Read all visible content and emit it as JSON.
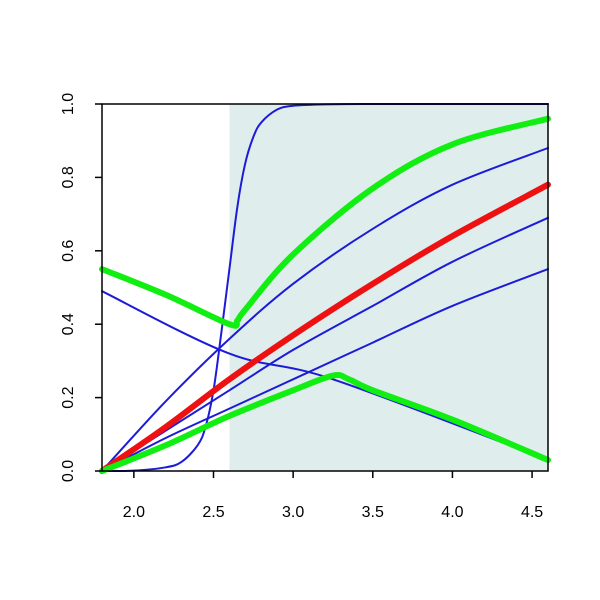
{
  "chart_data": {
    "type": "line",
    "title": "",
    "xlabel": "",
    "ylabel": "",
    "xlim": [
      1.8,
      4.6
    ],
    "ylim": [
      0.0,
      1.0
    ],
    "x_ticks": [
      "2.0",
      "2.5",
      "3.0",
      "3.5",
      "4.0",
      "4.5"
    ],
    "y_ticks": [
      "0.0",
      "0.2",
      "0.4",
      "0.6",
      "0.8",
      "1.0"
    ],
    "shaded_region": {
      "x_from": 2.6,
      "x_to": 4.6,
      "color": "#e0eded"
    },
    "grid": false,
    "legend": "none",
    "series": [
      {
        "color": "#1c1cd8",
        "width": "thin",
        "x": [
          1.8,
          2.0,
          2.2,
          2.3,
          2.4,
          2.45,
          2.5,
          2.55,
          2.6,
          2.65,
          2.7,
          2.75,
          2.8,
          2.9,
          3.0,
          3.2,
          3.5,
          4.0,
          4.6
        ],
        "y": [
          0.0,
          0.001,
          0.01,
          0.025,
          0.07,
          0.12,
          0.22,
          0.38,
          0.55,
          0.72,
          0.84,
          0.91,
          0.95,
          0.985,
          0.995,
          0.999,
          1.0,
          1.0,
          1.0
        ]
      },
      {
        "color": "#1c1cd8",
        "width": "thin",
        "x": [
          1.8,
          2.2,
          2.6,
          3.0,
          3.5,
          4.0,
          4.6
        ],
        "y": [
          0.0,
          0.19,
          0.36,
          0.51,
          0.66,
          0.78,
          0.88
        ]
      },
      {
        "color": "#1c1cd8",
        "width": "thin",
        "x": [
          1.8,
          2.2,
          2.6,
          3.0,
          3.5,
          4.0,
          4.6
        ],
        "y": [
          0.0,
          0.11,
          0.22,
          0.33,
          0.45,
          0.57,
          0.69
        ]
      },
      {
        "color": "#1c1cd8",
        "width": "thin",
        "x": [
          1.8,
          2.2,
          2.6,
          3.0,
          3.5,
          4.0,
          4.6
        ],
        "y": [
          0.0,
          0.09,
          0.17,
          0.25,
          0.35,
          0.45,
          0.55
        ]
      },
      {
        "color": "#1c1cd8",
        "width": "thin",
        "x": [
          1.8,
          2.6,
          3.25,
          4.6
        ],
        "y": [
          0.49,
          0.32,
          0.25,
          0.03
        ]
      },
      {
        "color": "#ee1111",
        "width": "thick",
        "x": [
          1.8,
          2.2,
          2.6,
          3.0,
          3.5,
          4.0,
          4.6
        ],
        "y": [
          0.0,
          0.12,
          0.25,
          0.37,
          0.51,
          0.64,
          0.78
        ]
      },
      {
        "color": "#11ee11",
        "width": "thick",
        "x": [
          1.8,
          2.2,
          2.6,
          2.65,
          2.7,
          3.0,
          3.5,
          4.0,
          4.6
        ],
        "y": [
          0.55,
          0.48,
          0.4,
          0.41,
          0.44,
          0.59,
          0.77,
          0.89,
          0.96
        ]
      },
      {
        "color": "#11ee11",
        "width": "thick",
        "x": [
          1.8,
          2.2,
          2.6,
          3.0,
          3.25,
          3.35,
          3.5,
          4.0,
          4.6
        ],
        "y": [
          0.0,
          0.07,
          0.15,
          0.22,
          0.26,
          0.25,
          0.22,
          0.14,
          0.03
        ]
      }
    ]
  }
}
